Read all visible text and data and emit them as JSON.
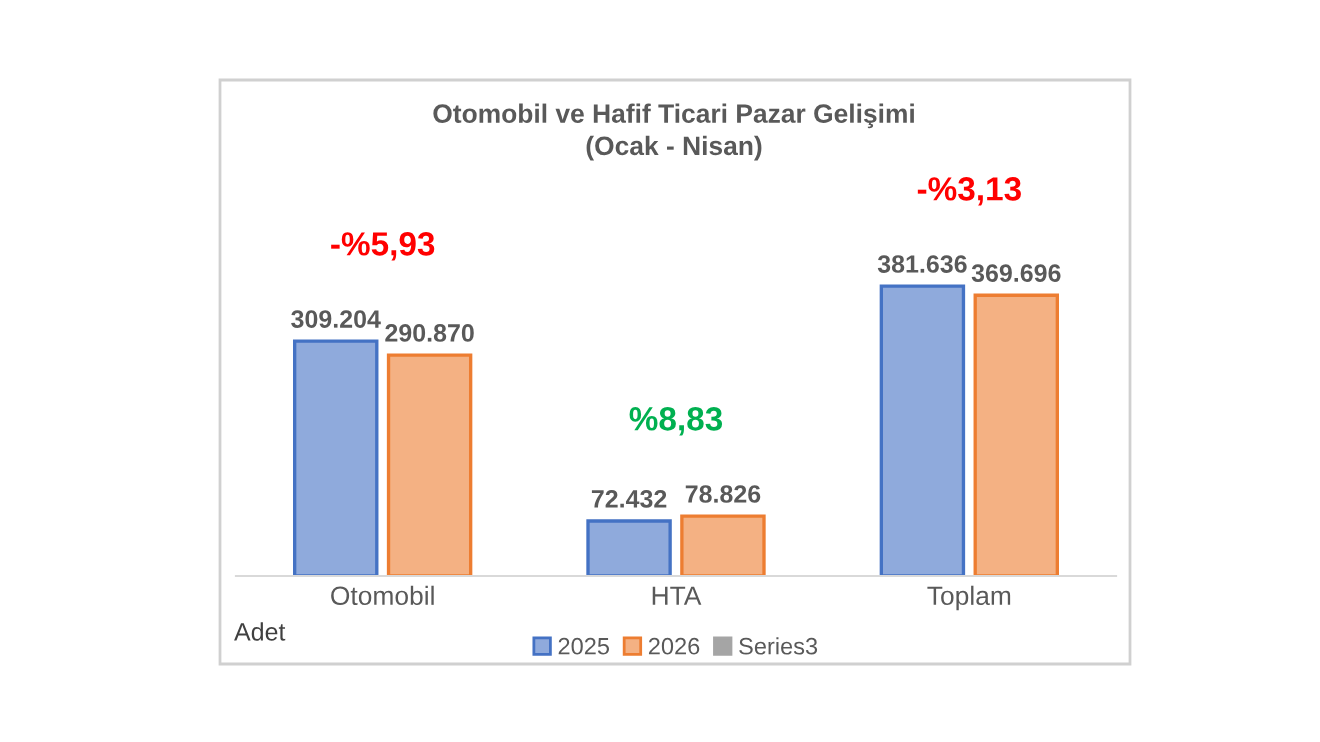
{
  "chart_data": {
    "type": "bar",
    "title": "Otomobil ve Hafif Ticari Pazar Gelişimi\n(Ocak - Nisan)",
    "categories": [
      "Otomobil",
      "HTA",
      "Toplam"
    ],
    "series": [
      {
        "name": "2025",
        "color": "#8faadc",
        "values": [
          309204,
          72432,
          381636
        ],
        "value_labels": [
          "309.204",
          "72.432",
          "381.636"
        ]
      },
      {
        "name": "2026",
        "color": "#f4b183",
        "values": [
          290870,
          78826,
          369696
        ],
        "value_labels": [
          "290.870",
          "78.826",
          "369.696"
        ]
      },
      {
        "name": "Series3",
        "color": "#a5a5a5",
        "values": [
          null,
          null,
          null
        ]
      }
    ],
    "annotations": [
      "-%5,93",
      "%8,83",
      "-%3,13",
      "Adet"
    ],
    "legend": "bottom",
    "grid": false
  }
}
